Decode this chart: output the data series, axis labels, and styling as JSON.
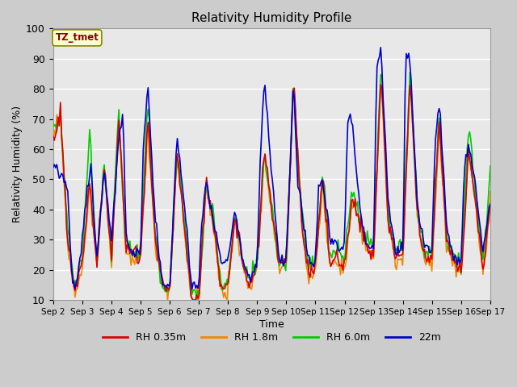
{
  "title": "Relativity Humidity Profile",
  "xlabel": "Time",
  "ylabel": "Relativity Humidity (%)",
  "ylim": [
    10,
    100
  ],
  "plot_bg_color": "#e8e8e8",
  "annotation_text": "TZ_tmet",
  "annotation_bg": "#ffffcc",
  "annotation_border": "#888800",
  "annotation_text_color": "#880000",
  "series_colors": [
    "#dd0000",
    "#ee8800",
    "#00cc00",
    "#0000cc"
  ],
  "series_labels": [
    "RH 0.35m",
    "RH 1.8m",
    "RH 6.0m",
    "22m"
  ],
  "line_width": 1.2,
  "x_tick_labels": [
    "Sep 2",
    "Sep 3",
    "Sep 4",
    "Sep 5",
    "Sep 6",
    "Sep 7",
    "Sep 8",
    "Sep 9",
    "Sep 10",
    "Sep 11",
    "Sep 12",
    "Sep 13",
    "Sep 14",
    "Sep 15",
    "Sep 16",
    "Sep 17"
  ],
  "num_days": 15,
  "yticks": [
    10,
    20,
    30,
    40,
    50,
    60,
    70,
    80,
    90,
    100
  ]
}
